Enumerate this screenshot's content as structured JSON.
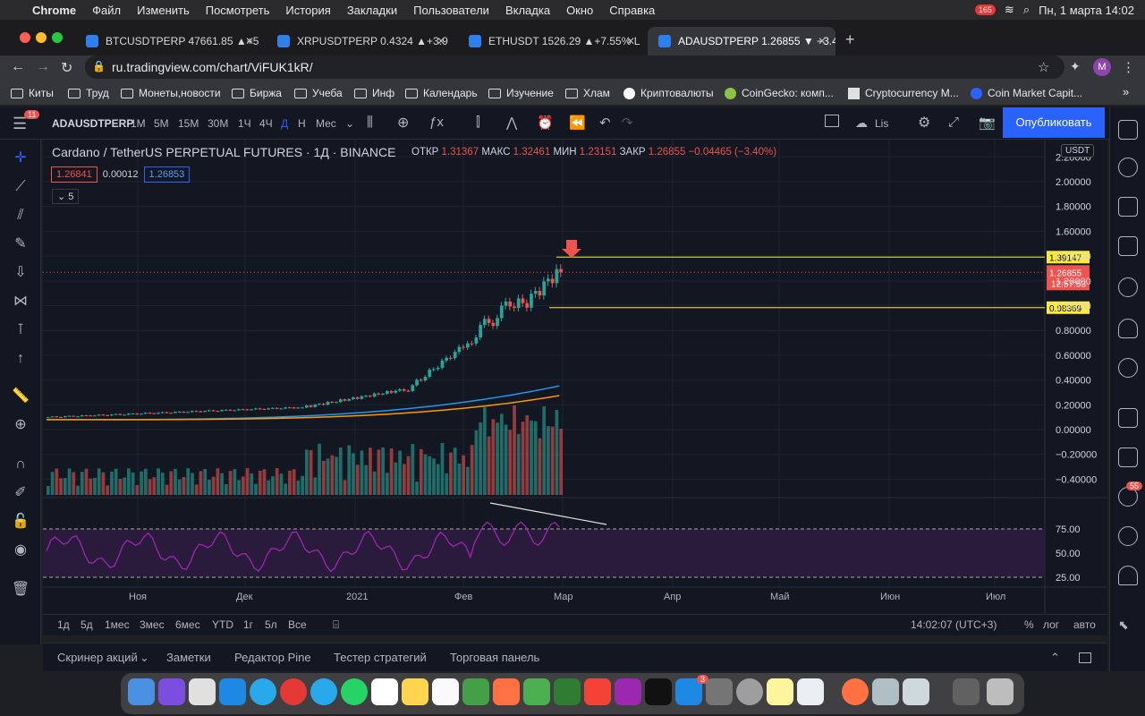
{
  "macos": {
    "app": "Chrome",
    "menus": [
      "Файл",
      "Изменить",
      "Посмотреть",
      "История",
      "Закладки",
      "Пользователи",
      "Вкладка",
      "Окно",
      "Справка"
    ],
    "clock": "Пн, 1 марта  14:02",
    "badge": "165"
  },
  "tabs": [
    {
      "label": "BTCUSDTPERP 47661.85 ▲+5"
    },
    {
      "label": "XRPUSDTPERP 0.4324 ▲+3.9"
    },
    {
      "label": "ETHUSDT 1526.29 ▲+7.55% L"
    },
    {
      "label": "ADAUSDTPERP 1.26855 ▼ −3.4"
    }
  ],
  "url": "ru.tradingview.com/chart/ViFUK1kR/",
  "profile_initial": "M",
  "bookmarks": [
    "Киты",
    "Труд",
    "Монеты,новости",
    "Биржа",
    "Учеба",
    "Инф",
    "Календарь",
    "Изучение",
    "Хлам",
    "Криптовалюты",
    "CoinGecko: комп...",
    "Cryptocurrency M...",
    "Coin Market Capit..."
  ],
  "toolbar": {
    "symbol": "ADAUSDTPERP",
    "intervals": [
      "1М",
      "5М",
      "15М",
      "30М",
      "1Ч",
      "4Ч",
      "Д",
      "Н",
      "Мес"
    ],
    "layout_name": "Lis",
    "publish": "Опубликовать",
    "notif": "11"
  },
  "legend": {
    "title": "Cardano / TetherUS PERPETUAL FUTURES · 1Д · BINANCE",
    "open_l": "ОТКР",
    "open": "1.31367",
    "high_l": "МАКС",
    "high": "1.32461",
    "low_l": "МИН",
    "low": "1.23151",
    "close_l": "ЗАКР",
    "close": "1.26855",
    "change": "−0.04465 (−3.40%)",
    "bid": "1.26841",
    "spread": "0.00012",
    "ask": "1.26853",
    "indicators": "5"
  },
  "price_axis": {
    "currency": "USDT",
    "ticks": [
      "2.20000",
      "2.00000",
      "1.80000",
      "1.60000",
      "1.40000",
      "1.20000",
      "1.00000",
      "0.80000",
      "0.60000",
      "0.40000",
      "0.20000",
      "0.00000",
      "−0.20000",
      "−0.40000"
    ],
    "level_high": "1.39147",
    "level_low": "0.98369",
    "last_price": "1.26855",
    "countdown": "12:57:53"
  },
  "rsi_axis": {
    "ticks": [
      "75.00",
      "50.00",
      "25.00"
    ]
  },
  "time_axis": [
    "Ноя",
    "Дек",
    "2021",
    "Фев",
    "Мар",
    "Апр",
    "Май",
    "Июн",
    "Июл"
  ],
  "ranges": [
    "1д",
    "5д",
    "1мес",
    "3мес",
    "6мес",
    "YTD",
    "1г",
    "5л",
    "Все"
  ],
  "bottom_right": {
    "time": "14:02:07 (UTC+3)",
    "pct": "%",
    "log": "лог",
    "auto": "авто"
  },
  "panel_tabs": [
    "Скринер акций",
    "Заметки",
    "Редактор Pine",
    "Тестер стратегий",
    "Торговая панель"
  ],
  "dock_badges": {
    "telegram": "3",
    "alerts": "55"
  },
  "colors": {
    "up": "#26a69a",
    "down": "#ef5350",
    "ema_fast": "#2196f3",
    "ema_slow": "#ff9800",
    "rsi": "#9c27b0",
    "level": "#ffeb3b",
    "accent": "#2962ff"
  }
}
